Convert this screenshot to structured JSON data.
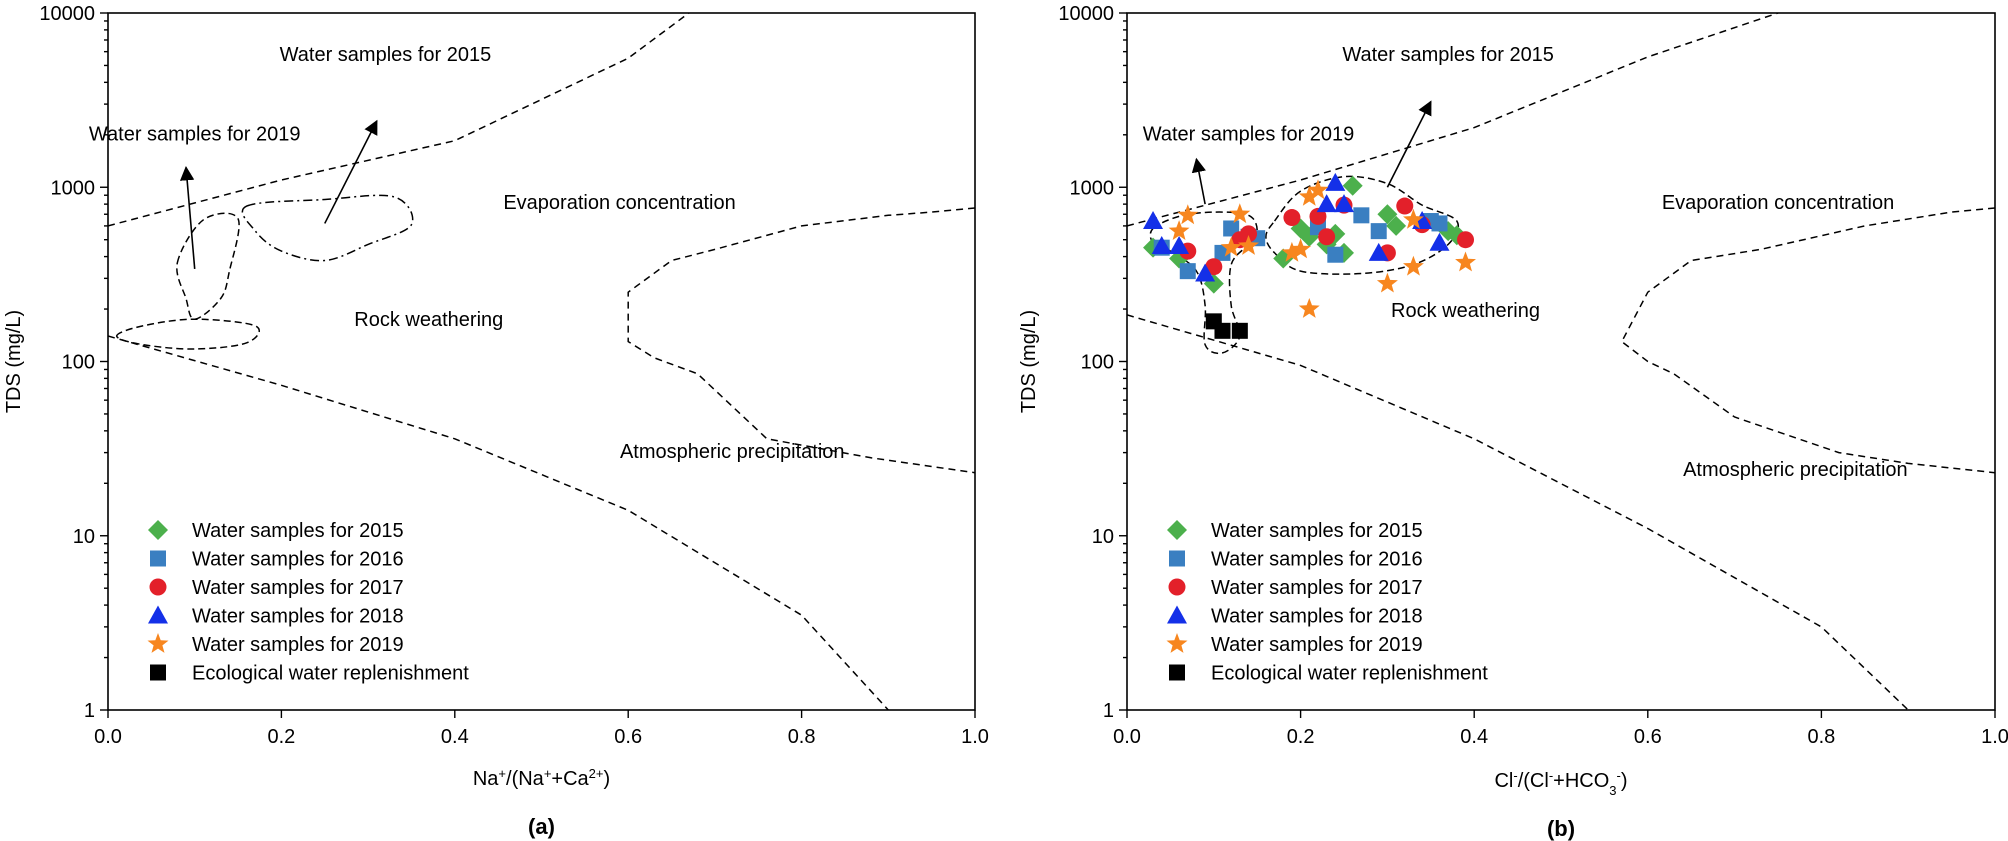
{
  "chart_data": [
    {
      "id": "a",
      "type": "scatter",
      "panel_label": "(a)",
      "title": "",
      "xlabel": {
        "base": "Na",
        "parts": [
          [
            "Na",
            ""
          ],
          [
            "+",
            "sup"
          ],
          [
            "/(Na",
            ""
          ],
          [
            "+",
            "sup"
          ],
          [
            "+Ca",
            ""
          ],
          [
            "2+",
            "sup"
          ],
          [
            ")",
            ""
          ]
        ]
      },
      "ylabel": "TDS (mg/L)",
      "xlim": [
        0,
        1
      ],
      "ylim": [
        1,
        10000
      ],
      "yscale": "log",
      "xticks": [
        "0.0",
        "0.2",
        "0.4",
        "0.6",
        "0.8",
        "1.0"
      ],
      "yticks": [
        "1",
        "10",
        "100",
        "1000",
        "10000"
      ],
      "region_labels": [
        {
          "text": "Evaporation concentration",
          "x": 0.59,
          "y": 750
        },
        {
          "text": "Rock weathering",
          "x": 0.37,
          "y": 160
        },
        {
          "text": "Atmospheric precipitation",
          "x": 0.72,
          "y": 28
        }
      ],
      "annotations": [
        {
          "text": "Water samples for 2015",
          "x": 0.32,
          "y": 5300,
          "arrow_from": [
            0.25,
            620
          ],
          "arrow_to": [
            0.31,
            2400
          ]
        },
        {
          "text": "Water samples for 2019",
          "x": 0.1,
          "y": 1850,
          "arrow_from": [
            0.1,
            340
          ],
          "arrow_to": [
            0.09,
            1300
          ]
        }
      ],
      "boundaries": [
        [
          [
            0,
            600
          ],
          [
            0.2,
            1100
          ],
          [
            0.4,
            1850
          ],
          [
            0.6,
            5500
          ],
          [
            0.67,
            10000
          ]
        ],
        [
          [
            0,
            140
          ],
          [
            0.2,
            73
          ],
          [
            0.4,
            36
          ],
          [
            0.6,
            14
          ],
          [
            0.8,
            3.5
          ],
          [
            0.9,
            1
          ]
        ],
        [
          [
            1.0,
            760
          ],
          [
            0.95,
            720
          ],
          [
            0.9,
            690
          ],
          [
            0.8,
            600
          ],
          [
            0.7,
            440
          ],
          [
            0.65,
            380
          ],
          [
            0.6,
            250
          ],
          [
            0.6,
            130
          ],
          [
            0.63,
            105
          ],
          [
            0.68,
            85
          ],
          [
            0.76,
            36
          ],
          [
            0.88,
            28
          ],
          [
            1.0,
            23
          ]
        ]
      ],
      "enclosures": [
        {
          "style": "dashed",
          "points": [
            [
              0.01,
              140
            ],
            [
              0.04,
              160
            ],
            [
              0.1,
              175
            ],
            [
              0.17,
              160
            ],
            [
              0.16,
              128
            ],
            [
              0.1,
              118
            ],
            [
              0.04,
              125
            ],
            [
              0.01,
              140
            ]
          ]
        },
        {
          "style": "dashed",
          "points": [
            [
              0.08,
              370
            ],
            [
              0.11,
              650
            ],
            [
              0.15,
              660
            ],
            [
              0.14,
              330
            ],
            [
              0.13,
              230
            ],
            [
              0.1,
              175
            ],
            [
              0.09,
              230
            ],
            [
              0.08,
              370
            ]
          ]
        },
        {
          "style": "dashdot",
          "points": [
            [
              0.16,
              780
            ],
            [
              0.25,
              850
            ],
            [
              0.33,
              880
            ],
            [
              0.35,
              610
            ],
            [
              0.3,
              470
            ],
            [
              0.25,
              380
            ],
            [
              0.2,
              430
            ],
            [
              0.17,
              560
            ],
            [
              0.16,
              780
            ]
          ]
        }
      ],
      "legend": {
        "placement": "bottom-left",
        "entries": [
          {
            "label": "Water samples for 2015",
            "marker": "diamond",
            "color": "#4cb04c"
          },
          {
            "label": "Water samples for 2016",
            "marker": "square",
            "color": "#3a7fc1"
          },
          {
            "label": "Water samples for 2017",
            "marker": "circle",
            "color": "#e3202a"
          },
          {
            "label": "Water samples for 2018",
            "marker": "triangle",
            "color": "#1430e8"
          },
          {
            "label": "Water samples for 2019",
            "marker": "star",
            "color": "#f7861f"
          },
          {
            "label": "Ecological water replenishment",
            "marker": "square",
            "color": "#000000"
          }
        ]
      },
      "series": []
    },
    {
      "id": "b",
      "type": "scatter",
      "panel_label": "(b)",
      "title": "",
      "xlabel": {
        "parts": [
          [
            "Cl",
            ""
          ],
          [
            "-",
            "sup"
          ],
          [
            "/(Cl",
            ""
          ],
          [
            "-",
            "sup"
          ],
          [
            "+HCO",
            ""
          ],
          [
            "3",
            "sub"
          ],
          [
            "-",
            "sup"
          ],
          [
            ")",
            ""
          ]
        ]
      },
      "ylabel": "TDS (mg/L)",
      "xlim": [
        0,
        1
      ],
      "ylim": [
        1,
        10000
      ],
      "yscale": "log",
      "xticks": [
        "0.0",
        "0.2",
        "0.4",
        "0.6",
        "0.8",
        "1.0"
      ],
      "yticks": [
        "1",
        "10",
        "100",
        "1000",
        "10000"
      ],
      "region_labels": [
        {
          "text": "Evaporation concentration",
          "x": 0.75,
          "y": 750
        },
        {
          "text": "Rock weathering",
          "x": 0.39,
          "y": 180
        },
        {
          "text": "Atmospheric precipitation",
          "x": 0.77,
          "y": 22
        }
      ],
      "annotations": [
        {
          "text": "Water samples for 2015",
          "x": 0.37,
          "y": 5300,
          "arrow_from": [
            0.3,
            1000
          ],
          "arrow_to": [
            0.35,
            3100
          ]
        },
        {
          "text": "Water samples for 2019",
          "x": 0.14,
          "y": 1850,
          "arrow_from": [
            0.09,
            800
          ],
          "arrow_to": [
            0.08,
            1450
          ]
        }
      ],
      "boundaries": [
        [
          [
            0,
            600
          ],
          [
            0.2,
            1100
          ],
          [
            0.4,
            2200
          ],
          [
            0.6,
            5600
          ],
          [
            0.75,
            10000
          ]
        ],
        [
          [
            0,
            185
          ],
          [
            0.2,
            95
          ],
          [
            0.4,
            36
          ],
          [
            0.6,
            11
          ],
          [
            0.8,
            3
          ],
          [
            0.9,
            1
          ]
        ],
        [
          [
            1.0,
            760
          ],
          [
            0.95,
            720
          ],
          [
            0.85,
            600
          ],
          [
            0.73,
            440
          ],
          [
            0.65,
            380
          ],
          [
            0.6,
            250
          ],
          [
            0.57,
            130
          ],
          [
            0.6,
            100
          ],
          [
            0.63,
            85
          ],
          [
            0.7,
            48
          ],
          [
            0.82,
            30
          ],
          [
            0.9,
            26
          ],
          [
            1.0,
            23
          ]
        ]
      ],
      "enclosures": [
        {
          "style": "dashed",
          "points": [
            [
              0.03,
              580
            ],
            [
              0.06,
              680
            ],
            [
              0.1,
              720
            ],
            [
              0.14,
              690
            ],
            [
              0.15,
              560
            ],
            [
              0.14,
              470
            ],
            [
              0.12,
              360
            ],
            [
              0.12,
              210
            ],
            [
              0.13,
              140
            ],
            [
              0.11,
              112
            ],
            [
              0.09,
              125
            ],
            [
              0.09,
              210
            ],
            [
              0.08,
              330
            ],
            [
              0.05,
              430
            ],
            [
              0.03,
              480
            ],
            [
              0.03,
              580
            ]
          ]
        },
        {
          "style": "dashed",
          "points": [
            [
              0.17,
              640
            ],
            [
              0.2,
              950
            ],
            [
              0.25,
              1150
            ],
            [
              0.3,
              1050
            ],
            [
              0.34,
              790
            ],
            [
              0.38,
              640
            ],
            [
              0.37,
              470
            ],
            [
              0.33,
              360
            ],
            [
              0.27,
              320
            ],
            [
              0.2,
              330
            ],
            [
              0.17,
              420
            ],
            [
              0.16,
              520
            ],
            [
              0.17,
              640
            ]
          ]
        }
      ],
      "legend": {
        "placement": "bottom-left",
        "entries": [
          {
            "label": "Water samples for 2015",
            "marker": "diamond",
            "color": "#4cb04c"
          },
          {
            "label": "Water samples for 2016",
            "marker": "square",
            "color": "#3a7fc1"
          },
          {
            "label": "Water samples for 2017",
            "marker": "circle",
            "color": "#e3202a"
          },
          {
            "label": "Water samples for 2018",
            "marker": "triangle",
            "color": "#1430e8"
          },
          {
            "label": "Water samples for 2019",
            "marker": "star",
            "color": "#f7861f"
          },
          {
            "label": "Ecological water replenishment",
            "marker": "square",
            "color": "#000000"
          }
        ]
      },
      "series": [
        {
          "name": "Water samples for 2015",
          "marker": "diamond",
          "color": "#4cb04c",
          "points": [
            [
              0.03,
              450
            ],
            [
              0.06,
              390
            ],
            [
              0.1,
              280
            ],
            [
              0.18,
              390
            ],
            [
              0.2,
              580
            ],
            [
              0.21,
              520
            ],
            [
              0.23,
              470
            ],
            [
              0.24,
              540
            ],
            [
              0.25,
              420
            ],
            [
              0.26,
              1020
            ],
            [
              0.3,
              700
            ],
            [
              0.31,
              600
            ],
            [
              0.37,
              560
            ],
            [
              0.38,
              530
            ]
          ]
        },
        {
          "name": "Water samples for 2016",
          "marker": "square",
          "color": "#3a7fc1",
          "points": [
            [
              0.04,
              450
            ],
            [
              0.07,
              330
            ],
            [
              0.11,
              420
            ],
            [
              0.12,
              580
            ],
            [
              0.14,
              520
            ],
            [
              0.15,
              510
            ],
            [
              0.22,
              590
            ],
            [
              0.24,
              410
            ],
            [
              0.27,
              690
            ],
            [
              0.29,
              560
            ],
            [
              0.35,
              640
            ],
            [
              0.36,
              620
            ]
          ]
        },
        {
          "name": "Water samples for 2017",
          "marker": "circle",
          "color": "#e3202a",
          "points": [
            [
              0.07,
              430
            ],
            [
              0.1,
              350
            ],
            [
              0.13,
              500
            ],
            [
              0.14,
              540
            ],
            [
              0.19,
              670
            ],
            [
              0.22,
              680
            ],
            [
              0.23,
              520
            ],
            [
              0.25,
              790
            ],
            [
              0.3,
              420
            ],
            [
              0.32,
              780
            ],
            [
              0.34,
              610
            ],
            [
              0.39,
              500
            ]
          ]
        },
        {
          "name": "Water samples for 2018",
          "marker": "triangle",
          "color": "#1430e8",
          "points": [
            [
              0.03,
              640
            ],
            [
              0.04,
              460
            ],
            [
              0.06,
              460
            ],
            [
              0.09,
              320
            ],
            [
              0.23,
              800
            ],
            [
              0.24,
              1060
            ],
            [
              0.25,
              800
            ],
            [
              0.29,
              420
            ],
            [
              0.34,
              640
            ],
            [
              0.36,
              480
            ]
          ]
        },
        {
          "name": "Water samples for 2019",
          "marker": "star",
          "color": "#f7861f",
          "points": [
            [
              0.06,
              560
            ],
            [
              0.07,
              690
            ],
            [
              0.12,
              450
            ],
            [
              0.13,
              700
            ],
            [
              0.14,
              460
            ],
            [
              0.19,
              420
            ],
            [
              0.2,
              440
            ],
            [
              0.21,
              880
            ],
            [
              0.22,
              960
            ],
            [
              0.21,
              200
            ],
            [
              0.3,
              280
            ],
            [
              0.33,
              650
            ],
            [
              0.33,
              350
            ],
            [
              0.39,
              370
            ]
          ]
        },
        {
          "name": "Ecological water replenishment",
          "marker": "square",
          "color": "#000000",
          "points": [
            [
              0.1,
              170
            ],
            [
              0.11,
              150
            ],
            [
              0.13,
              150
            ]
          ]
        }
      ]
    }
  ]
}
